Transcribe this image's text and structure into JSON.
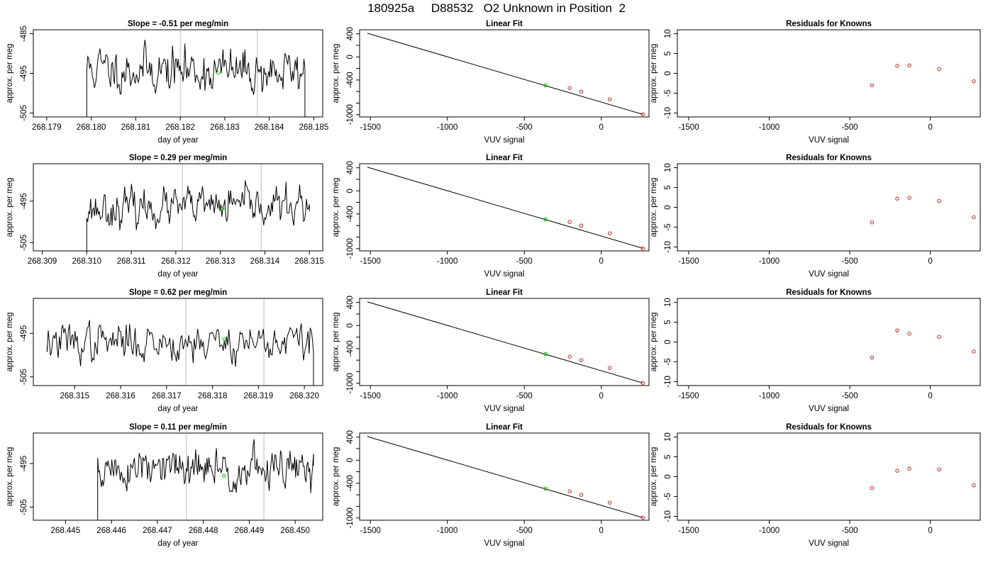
{
  "page_title": "180925a     D88532   O2 Unknown in Position  2",
  "colors": {
    "series": "#000000",
    "marker_unknown": "#22cc22",
    "marker_known": "#cc2222",
    "vline": "#c8c8c8",
    "frame": "#000000"
  },
  "chart_data": [
    {
      "type": "line",
      "panel": "raw",
      "row": 1,
      "title": "Slope =  -0.51  per meg/min",
      "xlabel": "day of year",
      "ylabel": "approx. per meg",
      "xlim": [
        268.1787,
        268.1852
      ],
      "ylim": [
        -506,
        -484
      ],
      "x_ticks": [
        268.179,
        268.18,
        268.181,
        268.182,
        268.183,
        268.184,
        268.185
      ],
      "x_tick_labels": [
        "268.179",
        "268.180",
        "268.181",
        "268.182",
        "268.183",
        "268.184",
        "268.185"
      ],
      "y_ticks": [
        -485,
        -495,
        -505
      ],
      "y_tick_labels": [
        "-485",
        "-495",
        "-505"
      ],
      "x_start": 268.1799,
      "x_end": 268.1848,
      "n_points": 230,
      "center": -494.3,
      "trend": -1.0,
      "noise": 2.6,
      "seed": 11,
      "drop_start": -506,
      "drop_end": -506,
      "vlines": [
        268.182,
        268.18373
      ],
      "marker_x": 268.18285,
      "marker_y": -494.9
    },
    {
      "type": "scatter",
      "panel": "fit",
      "row": 1,
      "title": "Linear Fit",
      "xlabel": "VUV signal",
      "ylabel": "approx. per meg",
      "xlim": [
        -1570,
        310
      ],
      "ylim": [
        -1040,
        470
      ],
      "x_ticks": [
        -1500,
        -1000,
        -500,
        0
      ],
      "x_tick_labels": [
        "-1500",
        "-1000",
        "-500",
        "0"
      ],
      "y_ticks": [
        400,
        0,
        -400,
        -1000
      ],
      "y_tick_labels": [
        "400",
        "0",
        "-400",
        "-1000"
      ],
      "line": {
        "x": [
          -1520,
          270
        ],
        "y": [
          410,
          -995
        ]
      },
      "known_points": {
        "x": [
          -205,
          -130,
          55,
          270
        ],
        "y": [
          -540,
          -600,
          -735,
          -995
        ]
      },
      "unknown_point": {
        "x": -362,
        "y": -494
      }
    },
    {
      "type": "scatter",
      "panel": "residuals",
      "row": 1,
      "title": "Residuals for Knowns",
      "xlabel": "VUV signal",
      "ylabel": "approx. per meg",
      "xlim": [
        -1570,
        310
      ],
      "ylim": [
        -11,
        11
      ],
      "x_ticks": [
        -1500,
        -1000,
        -500,
        0
      ],
      "x_tick_labels": [
        "-1500",
        "-1000",
        "-500",
        "0"
      ],
      "y_ticks": [
        10,
        5,
        0,
        -5,
        -10
      ],
      "y_tick_labels": [
        "10",
        "5",
        "0",
        "-5",
        "-10"
      ],
      "points": {
        "x": [
          -362,
          -205,
          -130,
          55,
          270
        ],
        "y": [
          -3.0,
          1.9,
          2.0,
          1.1,
          -2.0
        ]
      }
    },
    {
      "type": "line",
      "panel": "raw",
      "row": 2,
      "title": "Slope =  0.29  per meg/min",
      "xlabel": "day of year",
      "ylabel": "approx. per meg",
      "xlim": [
        268.3088,
        268.3153
      ],
      "ylim": [
        -507,
        -486
      ],
      "x_ticks": [
        268.309,
        268.31,
        268.311,
        268.312,
        268.313,
        268.314,
        268.315
      ],
      "x_tick_labels": [
        "268.309",
        "268.310",
        "268.311",
        "268.312",
        "268.313",
        "268.314",
        "268.315"
      ],
      "y_ticks": [
        -495,
        -505
      ],
      "y_tick_labels": [
        "-495",
        "-505"
      ],
      "x_start": 268.31,
      "x_end": 268.315,
      "n_points": 230,
      "center": -496.5,
      "trend": 0.8,
      "noise": 2.0,
      "seed": 23,
      "drop_start": -507,
      "drop_end": -497.5,
      "vlines": [
        268.31215,
        268.31392
      ],
      "marker_x": 268.31305,
      "marker_y": -496.8
    },
    {
      "type": "scatter",
      "panel": "fit",
      "row": 2,
      "title": "Linear Fit",
      "xlabel": "VUV signal",
      "ylabel": "approx. per meg",
      "xlim": [
        -1570,
        310
      ],
      "ylim": [
        -1040,
        470
      ],
      "x_ticks": [
        -1500,
        -1000,
        -500,
        0
      ],
      "x_tick_labels": [
        "-1500",
        "-1000",
        "-500",
        "0"
      ],
      "y_ticks": [
        400,
        0,
        -400,
        -1000
      ],
      "y_tick_labels": [
        "400",
        "0",
        "-400",
        "-1000"
      ],
      "line": {
        "x": [
          -1520,
          270
        ],
        "y": [
          410,
          -995
        ]
      },
      "known_points": {
        "x": [
          -205,
          -130,
          55,
          270
        ],
        "y": [
          -540,
          -600,
          -735,
          -995
        ]
      },
      "unknown_point": {
        "x": -362,
        "y": -494
      }
    },
    {
      "type": "scatter",
      "panel": "residuals",
      "row": 2,
      "title": "Residuals for Knowns",
      "xlabel": "VUV signal",
      "ylabel": "approx. per meg",
      "xlim": [
        -1570,
        310
      ],
      "ylim": [
        -11,
        11
      ],
      "x_ticks": [
        -1500,
        -1000,
        -500,
        0
      ],
      "x_tick_labels": [
        "-1500",
        "-1000",
        "-500",
        "0"
      ],
      "y_ticks": [
        10,
        5,
        0,
        -5,
        -10
      ],
      "y_tick_labels": [
        "10",
        "5",
        "0",
        "-5",
        "-10"
      ],
      "points": {
        "x": [
          -362,
          -205,
          -130,
          55,
          270
        ],
        "y": [
          -3.8,
          2.2,
          2.4,
          1.6,
          -2.5
        ]
      }
    },
    {
      "type": "line",
      "panel": "raw",
      "row": 3,
      "title": "Slope =  0.62  per meg/min",
      "xlabel": "day of year",
      "ylabel": "approx. per meg",
      "xlim": [
        268.3141,
        268.3204
      ],
      "ylim": [
        -507,
        -487
      ],
      "x_ticks": [
        268.315,
        268.316,
        268.317,
        268.318,
        268.319,
        268.32
      ],
      "x_tick_labels": [
        "268.315",
        "268.316",
        "268.317",
        "268.318",
        "268.319",
        "268.320"
      ],
      "y_ticks": [
        -495,
        -505
      ],
      "y_tick_labels": [
        "-495",
        "-505"
      ],
      "x_start": 268.3144,
      "x_end": 268.3202,
      "n_points": 240,
      "center": -497.0,
      "trend": 0.2,
      "noise": 2.0,
      "seed": 37,
      "drop_start": -498,
      "drop_end": -507,
      "vlines": [
        268.31742,
        268.31912
      ],
      "marker_x": 268.31825,
      "marker_y": -496.3
    },
    {
      "type": "scatter",
      "panel": "fit",
      "row": 3,
      "title": "Linear Fit",
      "xlabel": "VUV signal",
      "ylabel": "approx. per meg",
      "xlim": [
        -1570,
        310
      ],
      "ylim": [
        -1040,
        470
      ],
      "x_ticks": [
        -1500,
        -1000,
        -500,
        0
      ],
      "x_tick_labels": [
        "-1500",
        "-1000",
        "-500",
        "0"
      ],
      "y_ticks": [
        400,
        0,
        -400,
        -1000
      ],
      "y_tick_labels": [
        "400",
        "0",
        "-400",
        "-1000"
      ],
      "line": {
        "x": [
          -1520,
          270
        ],
        "y": [
          410,
          -995
        ]
      },
      "known_points": {
        "x": [
          -205,
          -130,
          55,
          270
        ],
        "y": [
          -540,
          -600,
          -735,
          -995
        ]
      },
      "unknown_point": {
        "x": -362,
        "y": -494
      }
    },
    {
      "type": "scatter",
      "panel": "residuals",
      "row": 3,
      "title": "Residuals for Knowns",
      "xlabel": "VUV signal",
      "ylabel": "approx. per meg",
      "xlim": [
        -1570,
        310
      ],
      "ylim": [
        -11,
        11
      ],
      "x_ticks": [
        -1500,
        -1000,
        -500,
        0
      ],
      "x_tick_labels": [
        "-1500",
        "-1000",
        "-500",
        "0"
      ],
      "y_ticks": [
        10,
        5,
        0,
        -5,
        -10
      ],
      "y_tick_labels": [
        "10",
        "5",
        "0",
        "-5",
        "-10"
      ],
      "points": {
        "x": [
          -362,
          -205,
          -130,
          55,
          270
        ],
        "y": [
          -3.9,
          2.9,
          2.1,
          1.3,
          -2.4
        ]
      }
    },
    {
      "type": "line",
      "panel": "raw",
      "row": 4,
      "title": "Slope =  0.11  per meg/min",
      "xlabel": "day of year",
      "ylabel": "approx. per meg",
      "xlim": [
        268.4443,
        268.4506
      ],
      "ylim": [
        -508,
        -488
      ],
      "x_ticks": [
        268.445,
        268.446,
        268.447,
        268.448,
        268.449,
        268.45
      ],
      "x_tick_labels": [
        "268.445",
        "268.446",
        "268.447",
        "268.448",
        "268.449",
        "268.450"
      ],
      "y_ticks": [
        -495,
        -505
      ],
      "y_tick_labels": [
        "-495",
        "-505"
      ],
      "x_start": 268.4457,
      "x_end": 268.4504,
      "n_points": 230,
      "center": -496.5,
      "trend": 0.3,
      "noise": 2.2,
      "seed": 51,
      "drop_start": -508,
      "drop_end": -495.5,
      "vlines": [
        268.44763,
        268.44932
      ],
      "marker_x": 268.44845,
      "marker_y": -497.8
    },
    {
      "type": "scatter",
      "panel": "fit",
      "row": 4,
      "title": "Linear Fit",
      "xlabel": "VUV signal",
      "ylabel": "approx. per meg",
      "xlim": [
        -1570,
        310
      ],
      "ylim": [
        -1040,
        470
      ],
      "x_ticks": [
        -1500,
        -1000,
        -500,
        0
      ],
      "x_tick_labels": [
        "-1500",
        "-1000",
        "-500",
        "0"
      ],
      "y_ticks": [
        400,
        0,
        -400,
        -1000
      ],
      "y_tick_labels": [
        "400",
        "0",
        "-400",
        "-1000"
      ],
      "line": {
        "x": [
          -1520,
          270
        ],
        "y": [
          410,
          -995
        ]
      },
      "known_points": {
        "x": [
          -205,
          -130,
          55,
          270
        ],
        "y": [
          -540,
          -600,
          -735,
          -995
        ]
      },
      "unknown_point": {
        "x": -362,
        "y": -494
      }
    },
    {
      "type": "scatter",
      "panel": "residuals",
      "row": 4,
      "title": "Residuals for Knowns",
      "xlabel": "VUV signal",
      "ylabel": "approx. per meg",
      "xlim": [
        -1570,
        310
      ],
      "ylim": [
        -11,
        11
      ],
      "x_ticks": [
        -1500,
        -1000,
        -500,
        0
      ],
      "x_tick_labels": [
        "-1500",
        "-1000",
        "-500",
        "0"
      ],
      "y_ticks": [
        10,
        5,
        0,
        -5,
        -10
      ],
      "y_tick_labels": [
        "10",
        "5",
        "0",
        "-5",
        "-10"
      ],
      "points": {
        "x": [
          -362,
          -205,
          -130,
          55,
          270
        ],
        "y": [
          -2.9,
          1.5,
          2.0,
          1.8,
          -2.2
        ]
      }
    }
  ]
}
